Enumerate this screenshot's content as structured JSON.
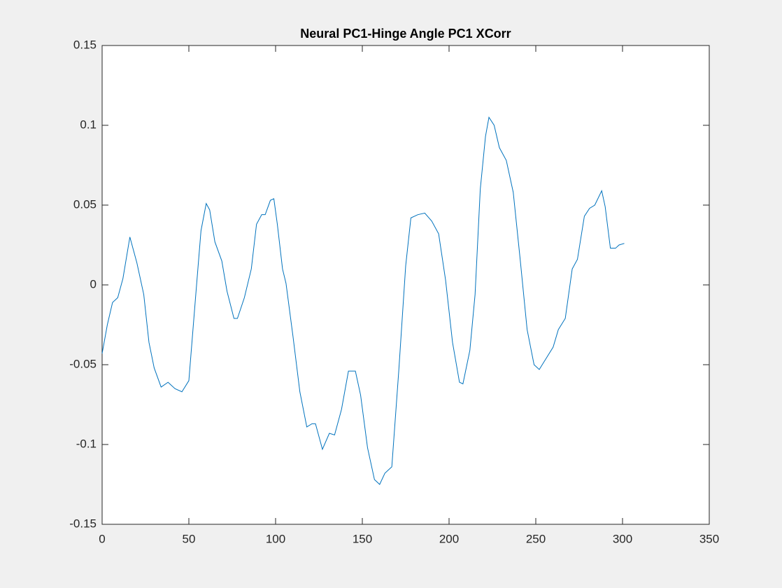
{
  "chart_data": {
    "type": "line",
    "title": "Neural PC1-Hinge Angle PC1 XCorr",
    "x": [
      0,
      3,
      6,
      9,
      12,
      16,
      20,
      24,
      27,
      30,
      34,
      38,
      42,
      46,
      50,
      54,
      57,
      60,
      62,
      65,
      69,
      72,
      76,
      78,
      82,
      86,
      89,
      92,
      94,
      97,
      99,
      101,
      104,
      106,
      110,
      114,
      118,
      121,
      123,
      127,
      131,
      134,
      138,
      142,
      146,
      149,
      153,
      157,
      160,
      163,
      167,
      171,
      175,
      178,
      182,
      186,
      190,
      194,
      198,
      202,
      206,
      208,
      212,
      215,
      218,
      221,
      223,
      226,
      229,
      233,
      237,
      241,
      245,
      249,
      252,
      256,
      260,
      263,
      267,
      271,
      274,
      278,
      281,
      284,
      288,
      290,
      293,
      296,
      298,
      301
    ],
    "series": [
      {
        "color": "#0072bd",
        "values": [
          -0.043,
          -0.025,
          -0.011,
          -0.008,
          0.004,
          0.03,
          0.014,
          -0.006,
          -0.036,
          -0.052,
          -0.064,
          -0.061,
          -0.065,
          -0.067,
          -0.06,
          -0.006,
          0.034,
          0.051,
          0.047,
          0.027,
          0.015,
          -0.004,
          -0.021,
          -0.021,
          -0.008,
          0.01,
          0.038,
          0.044,
          0.044,
          0.053,
          0.054,
          0.038,
          0.01,
          0.001,
          -0.032,
          -0.067,
          -0.089,
          -0.087,
          -0.087,
          -0.103,
          -0.093,
          -0.094,
          -0.078,
          -0.054,
          -0.054,
          -0.069,
          -0.102,
          -0.122,
          -0.125,
          -0.118,
          -0.114,
          -0.054,
          0.012,
          0.042,
          0.044,
          0.045,
          0.04,
          0.032,
          0.003,
          -0.036,
          -0.061,
          -0.062,
          -0.041,
          -0.006,
          0.06,
          0.093,
          0.105,
          0.1,
          0.086,
          0.078,
          0.058,
          0.016,
          -0.028,
          -0.05,
          -0.053,
          -0.046,
          -0.039,
          -0.028,
          -0.021,
          0.01,
          0.016,
          0.043,
          0.048,
          0.05,
          0.059,
          0.049,
          0.023,
          0.023,
          0.025,
          0.026
        ]
      }
    ],
    "xlim": [
      0,
      350
    ],
    "xticks": [
      0,
      50,
      100,
      150,
      200,
      250,
      300,
      350
    ],
    "ylim": [
      -0.15,
      0.15
    ],
    "yticks": [
      -0.15,
      -0.1,
      -0.05,
      0,
      0.05,
      0.1,
      0.15
    ]
  }
}
